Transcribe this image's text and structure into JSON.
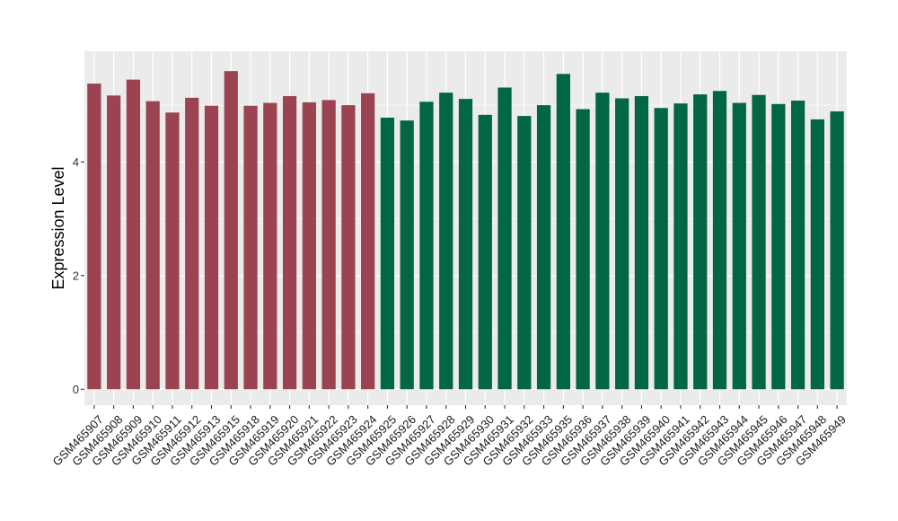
{
  "chart_data": {
    "type": "bar",
    "title": "",
    "xlabel": "",
    "ylabel": "Expression Level",
    "ylim": [
      -0.28,
      5.95
    ],
    "yticks": [
      0,
      2,
      4
    ],
    "grid": true,
    "legend": "none",
    "categories": [
      "GSM465907",
      "GSM465908",
      "GSM465909",
      "GSM465910",
      "GSM465911",
      "GSM465912",
      "GSM465913",
      "GSM465915",
      "GSM465918",
      "GSM465919",
      "GSM465920",
      "GSM465921",
      "GSM465922",
      "GSM465923",
      "GSM465924",
      "GSM465925",
      "GSM465926",
      "GSM465927",
      "GSM465928",
      "GSM465929",
      "GSM465930",
      "GSM465931",
      "GSM465932",
      "GSM465933",
      "GSM465935",
      "GSM465936",
      "GSM465937",
      "GSM465938",
      "GSM465939",
      "GSM465940",
      "GSM465941",
      "GSM465942",
      "GSM465943",
      "GSM465944",
      "GSM465945",
      "GSM465946",
      "GSM465947",
      "GSM465948",
      "GSM465949"
    ],
    "values": [
      5.38,
      5.17,
      5.45,
      5.07,
      4.87,
      5.13,
      4.99,
      5.6,
      4.99,
      5.04,
      5.16,
      5.05,
      5.09,
      5.0,
      5.21,
      4.78,
      4.73,
      5.06,
      5.22,
      5.11,
      4.83,
      5.31,
      4.81,
      5.0,
      5.55,
      4.93,
      5.22,
      5.12,
      5.16,
      4.95,
      5.03,
      5.19,
      5.25,
      5.04,
      5.18,
      5.02,
      5.08,
      4.75,
      4.89
    ],
    "groups": [
      0,
      0,
      0,
      0,
      0,
      0,
      0,
      0,
      0,
      0,
      0,
      0,
      0,
      0,
      0,
      1,
      1,
      1,
      1,
      1,
      1,
      1,
      1,
      1,
      1,
      1,
      1,
      1,
      1,
      1,
      1,
      1,
      1,
      1,
      1,
      1,
      1,
      1,
      1
    ],
    "group_colors": [
      "#9b4350",
      "#006644"
    ],
    "panel_color": "#ebebeb",
    "grid_color": "#ffffff"
  }
}
